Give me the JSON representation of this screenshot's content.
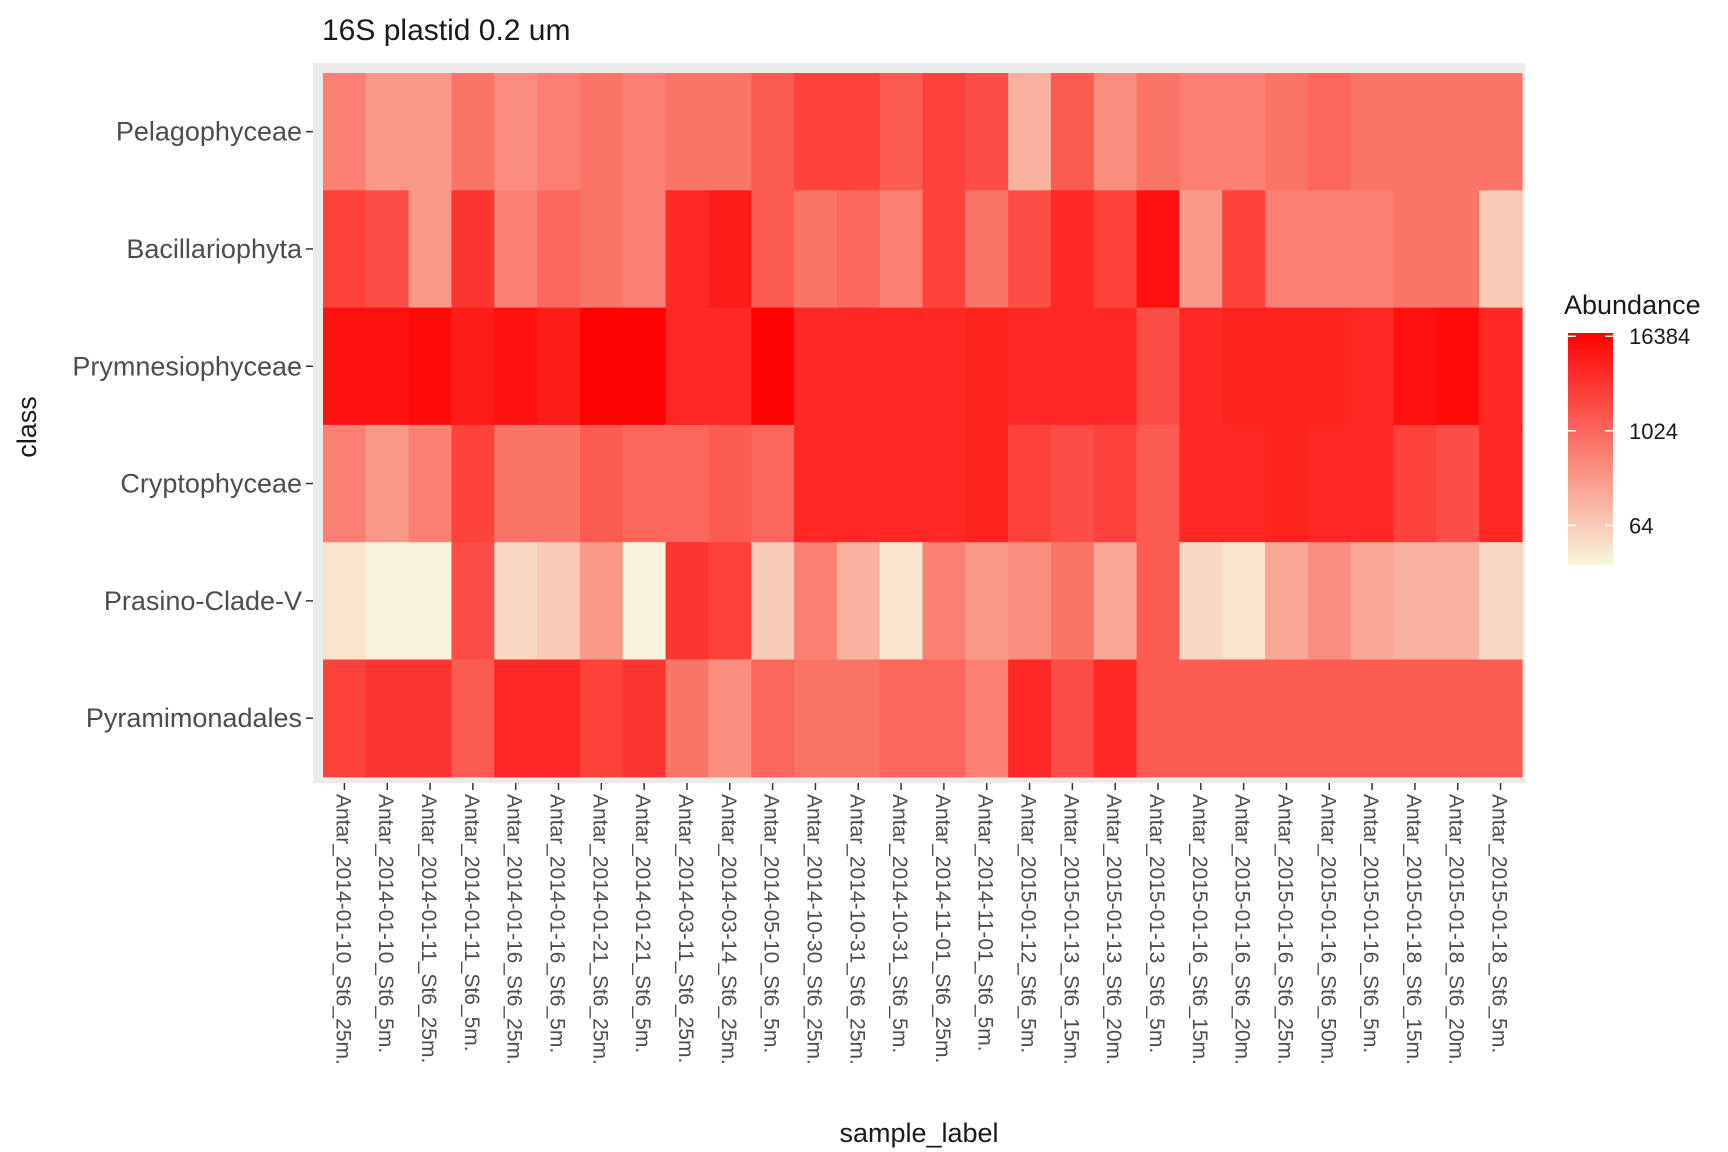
{
  "chart_data": {
    "type": "heatmap",
    "title": "16S plastid 0.2 um",
    "xlabel": "sample_label",
    "ylabel": "class",
    "x": [
      "Antar_2014-01-10_St6_25m.",
      "Antar_2014-01-10_St6_5m.",
      "Antar_2014-01-11_St6_25m.",
      "Antar_2014-01-11_St6_5m.",
      "Antar_2014-01-16_St6_25m.",
      "Antar_2014-01-16_St6_5m.",
      "Antar_2014-01-21_St6_25m.",
      "Antar_2014-01-21_St6_5m.",
      "Antar_2014-03-11_St6_25m.",
      "Antar_2014-03-14_St6_25m.",
      "Antar_2014-05-10_St6_5m.",
      "Antar_2014-10-30_St6_25m.",
      "Antar_2014-10-31_St6_25m.",
      "Antar_2014-10-31_St6_5m.",
      "Antar_2014-11-01_St6_25m.",
      "Antar_2014-11-01_St6_5m.",
      "Antar_2015-01-12_St6_5m.",
      "Antar_2015-01-13_St6_15m.",
      "Antar_2015-01-13_St6_20m.",
      "Antar_2015-01-13_St6_5m.",
      "Antar_2015-01-16_St6_15m.",
      "Antar_2015-01-16_St6_20m.",
      "Antar_2015-01-16_St6_25m.",
      "Antar_2015-01-16_St6_50m.",
      "Antar_2015-01-16_St6_5m.",
      "Antar_2015-01-18_St6_15m.",
      "Antar_2015-01-18_St6_20m.",
      "Antar_2015-01-18_St6_5m."
    ],
    "y": [
      "Pelagophyceae",
      "Bacillariophyta",
      "Prymnesiophyceae",
      "Cryptophyceae",
      "Prasino-Clade-V",
      "Pyramimonadales"
    ],
    "scale": "log2",
    "values": [
      [
        512,
        256,
        256,
        724,
        362,
        512,
        724,
        512,
        724,
        724,
        1448,
        2896,
        2896,
        1448,
        2896,
        2048,
        128,
        1448,
        362,
        724,
        512,
        512,
        724,
        1024,
        724,
        724,
        724,
        724
      ],
      [
        2896,
        2048,
        256,
        4096,
        512,
        1024,
        724,
        512,
        5792,
        8192,
        1448,
        724,
        1024,
        512,
        2896,
        724,
        2048,
        5792,
        2896,
        11585,
        256,
        2896,
        512,
        512,
        512,
        724,
        724,
        64
      ],
      [
        11585,
        11585,
        13777,
        8192,
        11585,
        8192,
        16384,
        16384,
        5792,
        5792,
        16384,
        5792,
        5792,
        5792,
        5792,
        6889,
        5792,
        5792,
        5792,
        2048,
        5792,
        6889,
        6889,
        6889,
        5792,
        11585,
        13777,
        5792
      ],
      [
        512,
        256,
        512,
        2896,
        724,
        724,
        1448,
        1024,
        1024,
        1448,
        1024,
        5792,
        5792,
        5792,
        5792,
        6889,
        2896,
        2048,
        2896,
        1448,
        5792,
        5792,
        6889,
        5792,
        5792,
        2896,
        2048,
        5792
      ],
      [
        32,
        22,
        22,
        2048,
        45,
        64,
        256,
        22,
        4096,
        2896,
        64,
        512,
        128,
        32,
        512,
        256,
        362,
        724,
        181,
        1448,
        45,
        32,
        181,
        362,
        181,
        128,
        128,
        45
      ],
      [
        2896,
        4096,
        4096,
        1448,
        5792,
        5792,
        2896,
        4096,
        724,
        362,
        1024,
        724,
        724,
        1024,
        1024,
        512,
        5792,
        2048,
        5792,
        1448,
        1448,
        1448,
        1448,
        1448,
        1448,
        1448,
        1448,
        1448
      ]
    ],
    "legend": {
      "title": "Abundance",
      "ticks": [
        "64",
        "1024",
        "16384"
      ],
      "tick_values": [
        64,
        1024,
        16384
      ],
      "placement": "right"
    },
    "color_scale": {
      "low": "#f7f5dc",
      "high": "#ff0000"
    }
  }
}
